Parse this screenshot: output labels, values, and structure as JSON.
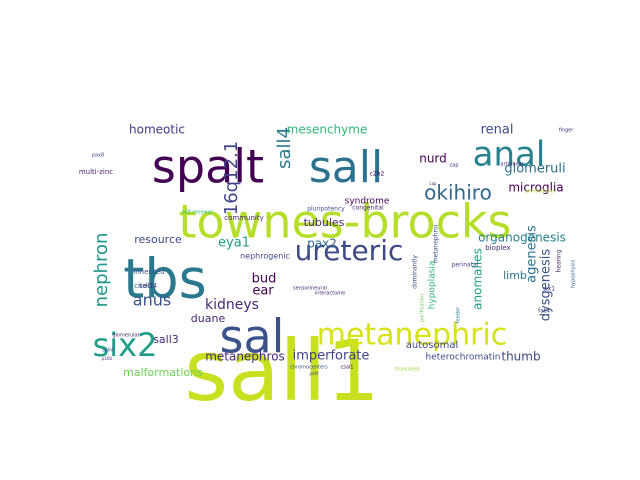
{
  "words": [
    {
      "text": "sall1",
      "color": "#c8e020",
      "big": true
    },
    {
      "text": "townes-brocks",
      "color": "#b5de2b",
      "big": true
    },
    {
      "text": "tbs",
      "color": "#2a788e",
      "big": true
    },
    {
      "text": "sal",
      "color": "#3b528b",
      "big": true
    },
    {
      "text": "spalt",
      "color": "#440154",
      "big": true
    },
    {
      "text": "sall",
      "color": "#2c728e",
      "big": true
    },
    {
      "text": "anal",
      "color": "#26828e",
      "big": true
    },
    {
      "text": "metanephric",
      "color": "#d8e219",
      "big": true
    },
    {
      "text": "six2",
      "color": "#1f9e89",
      "big": true
    },
    {
      "text": "ureteric",
      "color": "#3e4989",
      "big": true
    },
    {
      "text": "okihiro",
      "color": "#31688e",
      "big": false
    },
    {
      "text": "nephron",
      "color": "#1f968b",
      "big": false
    },
    {
      "text": "16q12.1",
      "color": "#414487",
      "big": false
    },
    {
      "text": "sall4",
      "color": "#2a788e",
      "big": false
    },
    {
      "text": "anus",
      "color": "#3b528b",
      "big": false
    },
    {
      "text": "kidneys",
      "color": "#482878",
      "big": false
    },
    {
      "text": "homeotic",
      "color": "#453781",
      "big": false
    },
    {
      "text": "mesenchyme",
      "color": "#35b779",
      "big": false
    },
    {
      "text": "glomeruli",
      "color": "#2d708e",
      "big": false
    },
    {
      "text": "renal",
      "color": "#3e4989",
      "big": false
    },
    {
      "text": "microglia",
      "color": "#440154",
      "big": false
    },
    {
      "text": "nurd",
      "color": "#440154",
      "big": false
    },
    {
      "text": "organogenesis",
      "color": "#26828e",
      "big": false
    },
    {
      "text": "dysgenesis",
      "color": "#3b528b",
      "big": false
    },
    {
      "text": "agenesis",
      "color": "#2c728e",
      "big": false
    },
    {
      "text": "anomalies",
      "color": "#1f9e89",
      "big": false
    },
    {
      "text": "imperforate",
      "color": "#414487",
      "big": false
    },
    {
      "text": "metanephros",
      "color": "#482878",
      "big": false
    },
    {
      "text": "thumb",
      "color": "#3e4989",
      "big": false
    },
    {
      "text": "malformations",
      "color": "#6ece58",
      "big": false
    },
    {
      "text": "resource",
      "color": "#3e4989",
      "big": false
    },
    {
      "text": "tubules",
      "color": "#482878",
      "big": false
    },
    {
      "text": "pax2",
      "color": "#31688e",
      "big": false
    },
    {
      "text": "eya1",
      "color": "#1fa188",
      "big": false
    },
    {
      "text": "bud",
      "color": "#440154",
      "big": false
    },
    {
      "text": "ear",
      "color": "#440154",
      "big": false
    },
    {
      "text": "duane",
      "color": "#482878",
      "big": false
    },
    {
      "text": "sall3",
      "color": "#482878",
      "big": false
    },
    {
      "text": "limb",
      "color": "#2d708e",
      "big": false
    },
    {
      "text": "autosomal",
      "color": "#3e4989",
      "big": false
    },
    {
      "text": "heterochromatin",
      "color": "#3e4989",
      "big": false
    },
    {
      "text": "hypoplasia",
      "color": "#35b779",
      "big": false
    },
    {
      "text": "syndrome",
      "color": "#440154",
      "big": false
    },
    {
      "text": "nephrogenic",
      "color": "#3e4989",
      "big": false
    },
    {
      "text": "community",
      "color": "#482878",
      "big": false
    },
    {
      "text": "inherited",
      "color": "#3b528b",
      "big": false
    },
    {
      "text": "cited1",
      "color": "#31688e",
      "big": false
    },
    {
      "text": "bioplex",
      "color": "#482878",
      "big": false
    },
    {
      "text": "six1",
      "color": "#482878",
      "big": false
    },
    {
      "text": "fat4",
      "color": "#414487",
      "big": false
    },
    {
      "text": "sall14",
      "color": "#482878",
      "big": false
    },
    {
      "text": "multi-zinc",
      "color": "#482878",
      "big": false
    },
    {
      "text": "pluripotency",
      "color": "#3b528b",
      "big": false
    },
    {
      "text": "congenital",
      "color": "#482878",
      "big": false
    },
    {
      "text": "chromocenters",
      "color": "#3b528b",
      "big": false
    },
    {
      "text": "interactome",
      "color": "#482878",
      "big": false
    },
    {
      "text": "dominantly",
      "color": "#3e4989",
      "big": false
    },
    {
      "text": "perinatal",
      "color": "#3e4989",
      "big": false
    },
    {
      "text": "hearing",
      "color": "#482878",
      "big": false
    },
    {
      "text": "metanephroi",
      "color": "#3b528b",
      "big": false
    },
    {
      "text": "finger",
      "color": "#482878",
      "big": false
    },
    {
      "text": "c2h2",
      "color": "#440154",
      "big": false
    },
    {
      "text": "arteriolar",
      "color": "#482878",
      "big": false
    },
    {
      "text": "cap",
      "color": "#482878",
      "big": false
    },
    {
      "text": "pax8",
      "color": "#3e4989",
      "big": false
    },
    {
      "text": "glomerular",
      "color": "#482878",
      "big": false
    },
    {
      "text": "annotations",
      "color": "#b5de2b",
      "big": false
    },
    {
      "text": "sall4",
      "color": "#3b528b",
      "big": false
    },
    {
      "text": "p160",
      "color": "#482878",
      "big": false
    },
    {
      "text": "truncated",
      "color": "#9fda3a",
      "big": false
    },
    {
      "text": "csal1",
      "color": "#440154",
      "big": false
    },
    {
      "text": "self-renewal",
      "color": "#35b779",
      "big": false
    },
    {
      "text": "purification",
      "color": "#6ece58",
      "big": false
    },
    {
      "text": "sensorineural",
      "color": "#482878",
      "big": false
    },
    {
      "text": "cap",
      "color": "#482878",
      "big": false
    },
    {
      "text": "hypophysis",
      "color": "#31688e",
      "big": false
    },
    {
      "text": "feeder",
      "color": "#2a788e",
      "big": false
    },
    {
      "text": "pdhf",
      "color": "#3e4989",
      "big": false
    }
  ]
}
